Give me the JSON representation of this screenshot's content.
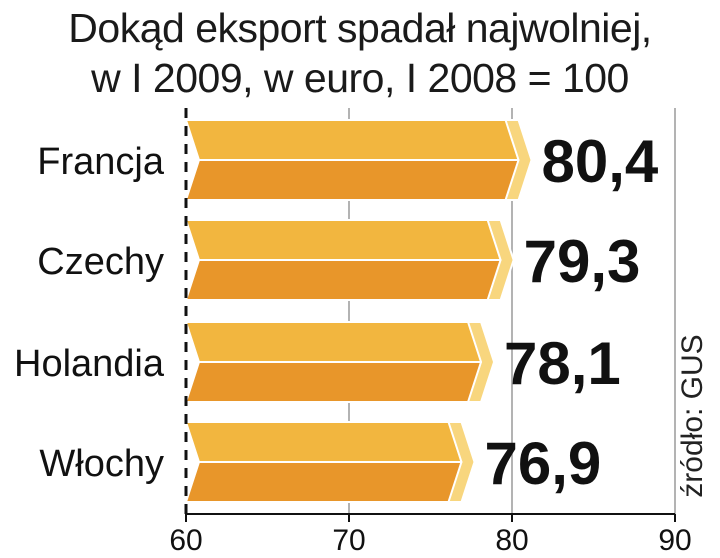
{
  "title": {
    "line1": "Dokąd eksport spadał najwolniej,",
    "line2": "w I 2009, w euro, I 2008 = 100"
  },
  "source": "źródło: GUS",
  "colors": {
    "bar_top": "#f2b63f",
    "bar_bottom": "#e8962a",
    "bar_tip": "#f8d67e",
    "bar_edge": "#ffffff",
    "grid": "#9a9a9a",
    "axis": "#111111",
    "text": "#111111"
  },
  "chart_data": {
    "type": "bar",
    "orientation": "horizontal",
    "categories": [
      "Francja",
      "Czechy",
      "Holandia",
      "Włochy"
    ],
    "values": [
      80.4,
      79.3,
      78.1,
      76.9
    ],
    "value_labels": [
      "80,4",
      "79,3",
      "78,1",
      "76,9"
    ],
    "xlim": [
      60,
      90
    ],
    "xticks": [
      60,
      70,
      80,
      90
    ],
    "xtick_labels": [
      "60",
      "70",
      "80",
      "90"
    ],
    "grid": true
  }
}
